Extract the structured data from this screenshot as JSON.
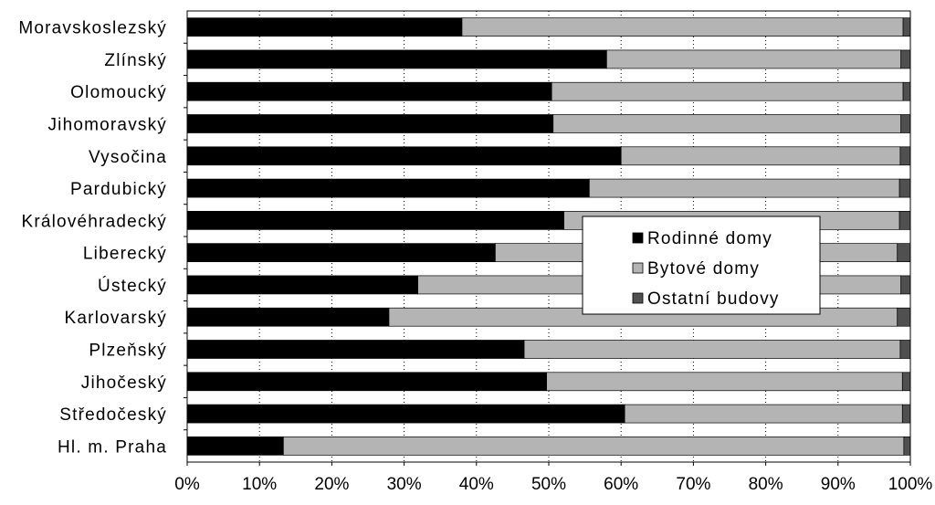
{
  "chart_data": {
    "type": "bar",
    "orientation": "horizontal",
    "stacked": "percent",
    "categories": [
      "Moravskoslezský",
      "Zlínský",
      "Olomoucký",
      "Jihomoravský",
      "Vysočina",
      "Pardubický",
      "Královéhradecký",
      "Liberecký",
      "Ústecký",
      "Karlovarský",
      "Plzeňský",
      "Jihočeský",
      "Středočeský",
      "Hl. m. Praha"
    ],
    "series": [
      {
        "name": "Rodinné domy",
        "color": "#000000",
        "values": [
          38.0,
          58.0,
          50.4,
          50.6,
          60.0,
          55.6,
          52.1,
          42.6,
          31.9,
          27.9,
          46.6,
          49.7,
          60.5,
          13.3
        ]
      },
      {
        "name": "Bytové domy",
        "color": "#b4b4b4",
        "values": [
          61.0,
          40.7,
          48.6,
          48.1,
          38.6,
          42.9,
          46.4,
          55.6,
          66.8,
          70.3,
          52.0,
          49.2,
          38.4,
          85.8
        ]
      },
      {
        "name": "Ostatní budovy",
        "color": "#505050",
        "values": [
          1.0,
          1.3,
          1.0,
          1.3,
          1.4,
          1.5,
          1.5,
          1.8,
          1.3,
          1.8,
          1.4,
          1.1,
          1.1,
          0.9
        ]
      }
    ],
    "xlim": [
      0,
      100
    ],
    "x_ticks": [
      0,
      10,
      20,
      30,
      40,
      50,
      60,
      70,
      80,
      90,
      100
    ],
    "x_tick_labels": [
      "0%",
      "10%",
      "20%",
      "30%",
      "40%",
      "50%",
      "60%",
      "70%",
      "80%",
      "90%",
      "100%"
    ],
    "grid": "vertical dotted",
    "legend": "center-right"
  }
}
